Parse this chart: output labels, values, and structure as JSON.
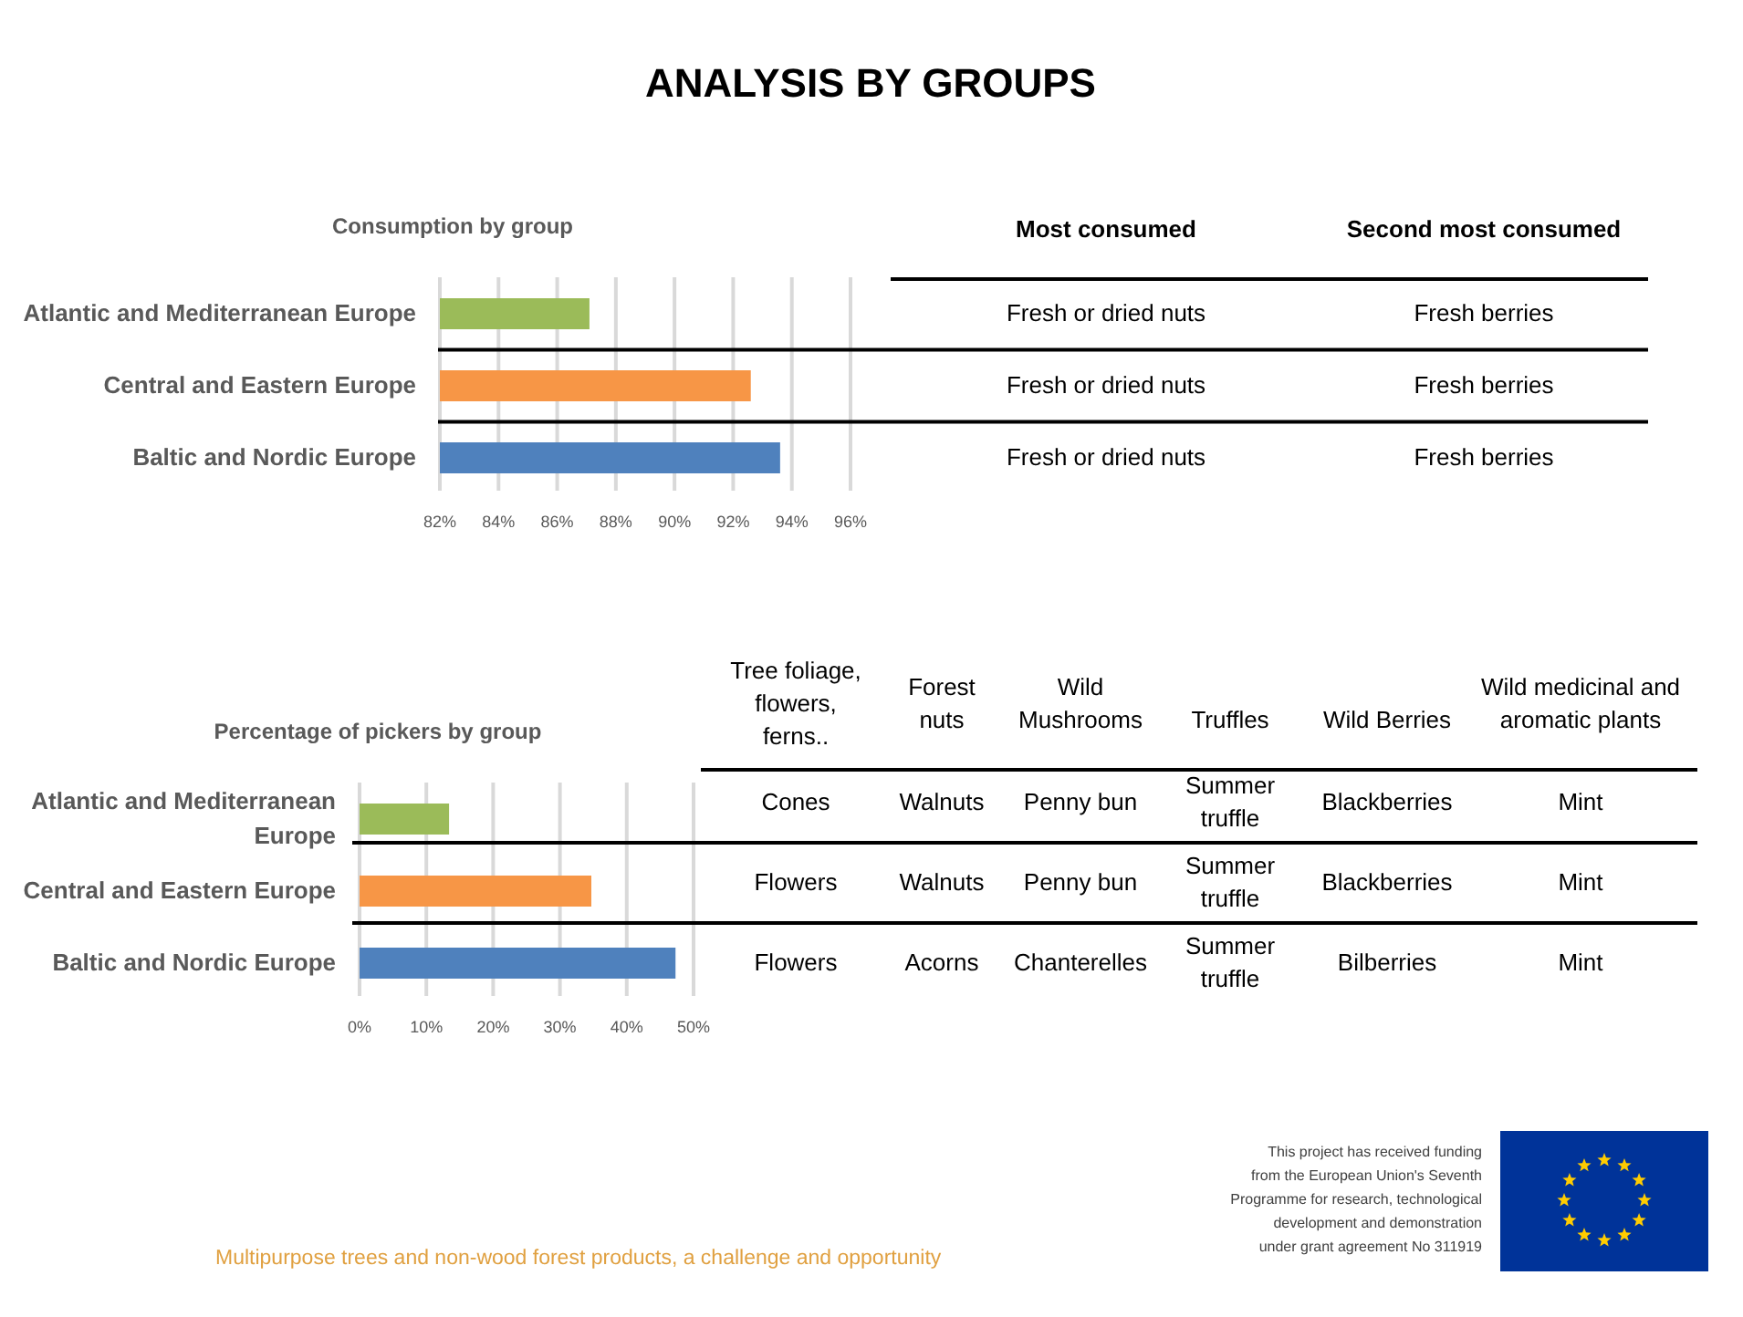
{
  "chart_data": [
    {
      "type": "other",
      "title": "ANALYSIS BY GROUPS"
    },
    {
      "type": "bar",
      "orientation": "horizontal",
      "title": "Consumption by group",
      "categories": [
        "Atlantic and Mediterranean Europe",
        "Central and Eastern Europe",
        "Baltic and Nordic Europe"
      ],
      "values": [
        87.1,
        92.6,
        93.6
      ],
      "colors": [
        "#9bbb59",
        "#f79646",
        "#4f81bd"
      ],
      "xlim": [
        82,
        96
      ],
      "xticks": [
        {
          "value": 82,
          "label": "82%"
        },
        {
          "value": 84,
          "label": "84%"
        },
        {
          "value": 86,
          "label": "86%"
        },
        {
          "value": 88,
          "label": "88%"
        },
        {
          "value": 90,
          "label": "90%"
        },
        {
          "value": 92,
          "label": "92%"
        },
        {
          "value": 94,
          "label": "94%"
        },
        {
          "value": 96,
          "label": "96%"
        }
      ],
      "grid": "x"
    },
    {
      "type": "other",
      "categories": [
        "Most consumed",
        "Second most consumed"
      ],
      "annotations": [
        "Fresh or dried nuts",
        "Fresh berries",
        "Fresh or dried nuts",
        "Fresh berries",
        "Fresh or dried nuts",
        "Fresh berries"
      ]
    },
    {
      "type": "bar",
      "orientation": "horizontal",
      "title": "Percentage of pickers by  group",
      "categories": [
        "Atlantic and Mediterranean Europe",
        "Central and Eastern Europe",
        "Baltic and Nordic Europe"
      ],
      "values": [
        13.4,
        34.7,
        47.3
      ],
      "colors": [
        "#9bbb59",
        "#f79646",
        "#4f81bd"
      ],
      "xlim": [
        0,
        50
      ],
      "xticks": [
        {
          "value": 0,
          "label": "0%"
        },
        {
          "value": 10,
          "label": "10%"
        },
        {
          "value": 20,
          "label": "20%"
        },
        {
          "value": 30,
          "label": "30%"
        },
        {
          "value": 40,
          "label": "40%"
        },
        {
          "value": 50,
          "label": "50%"
        }
      ],
      "grid": "x"
    },
    {
      "type": "other",
      "categories": [
        "Tree foliage, flowers, ferns..",
        "Forest nuts",
        "Wild Mushrooms",
        "Truffles",
        "Wild Berries",
        "Wild medicinal and aromatic plants"
      ],
      "annotations": [
        "Cones",
        "Walnuts",
        "Penny bun",
        "Summer truffle",
        "Blackberries",
        "Mint",
        "Flowers",
        "Walnuts",
        "Penny bun",
        "Summer truffle",
        "Blackberries",
        "Mint",
        "Flowers",
        "Acorns",
        "Chanterelles",
        "Summer truffle",
        "Bilberries",
        "Mint"
      ]
    },
    {
      "type": "other",
      "annotations": [
        "Multipurpose trees and non-wood forest products, a challenge and opportunity",
        "This project has received funding\nfrom the European Union's Seventh\nProgramme for research, technological\ndevelopment and demonstration\nunder grant agreement No 311919"
      ]
    }
  ]
}
